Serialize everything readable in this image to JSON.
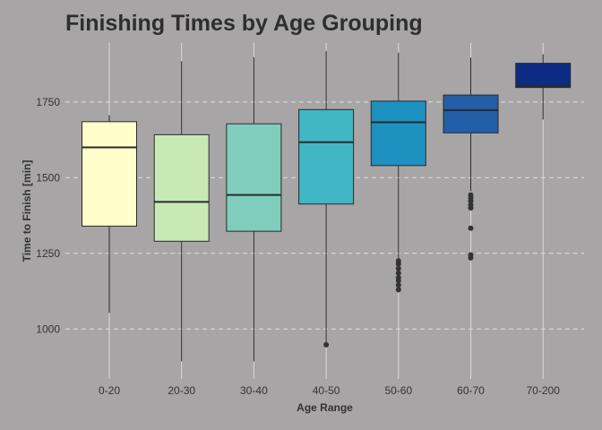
{
  "chart_data": {
    "type": "box",
    "title": "Finishing Times by Age Grouping",
    "xlabel": "Age Range",
    "ylabel": "Time to Finish [min]",
    "ylim": [
      835,
      1945
    ],
    "yticks": [
      1000,
      1250,
      1500,
      1750
    ],
    "grid": true,
    "legend": "none",
    "categories": [
      "0-20",
      "20-30",
      "30-40",
      "40-50",
      "50-60",
      "60-70",
      "70-200"
    ],
    "colors": [
      "#ffffcc",
      "#c7e9b4",
      "#7fcdbb",
      "#41b6c4",
      "#1d91c0",
      "#225ea8",
      "#0c2c84"
    ],
    "boxes": [
      {
        "category": "0-20",
        "whisker_low": 1053,
        "q1": 1340,
        "median": 1600,
        "q3": 1685,
        "whisker_high": 1707,
        "outliers": []
      },
      {
        "category": "20-30",
        "whisker_low": 893,
        "q1": 1290,
        "median": 1420,
        "q3": 1642,
        "whisker_high": 1885,
        "outliers": []
      },
      {
        "category": "30-40",
        "whisker_low": 893,
        "q1": 1323,
        "median": 1443,
        "q3": 1678,
        "whisker_high": 1898,
        "outliers": []
      },
      {
        "category": "40-50",
        "whisker_low": 950,
        "q1": 1413,
        "median": 1617,
        "q3": 1725,
        "whisker_high": 1918,
        "outliers": [
          948
        ]
      },
      {
        "category": "50-60",
        "whisker_low": 1230,
        "q1": 1540,
        "median": 1683,
        "q3": 1753,
        "whisker_high": 1913,
        "outliers": [
          1130,
          1145,
          1160,
          1170,
          1185,
          1200,
          1215,
          1225
        ]
      },
      {
        "category": "60-70",
        "whisker_low": 1455,
        "q1": 1648,
        "median": 1723,
        "q3": 1773,
        "whisker_high": 1897,
        "outliers": [
          1235,
          1245,
          1333,
          1400,
          1410,
          1423,
          1433,
          1443
        ]
      },
      {
        "category": "70-200",
        "whisker_low": 1692,
        "q1": 1798,
        "median": 1803,
        "q3": 1878,
        "whisker_high": 1908,
        "outliers": []
      }
    ]
  }
}
